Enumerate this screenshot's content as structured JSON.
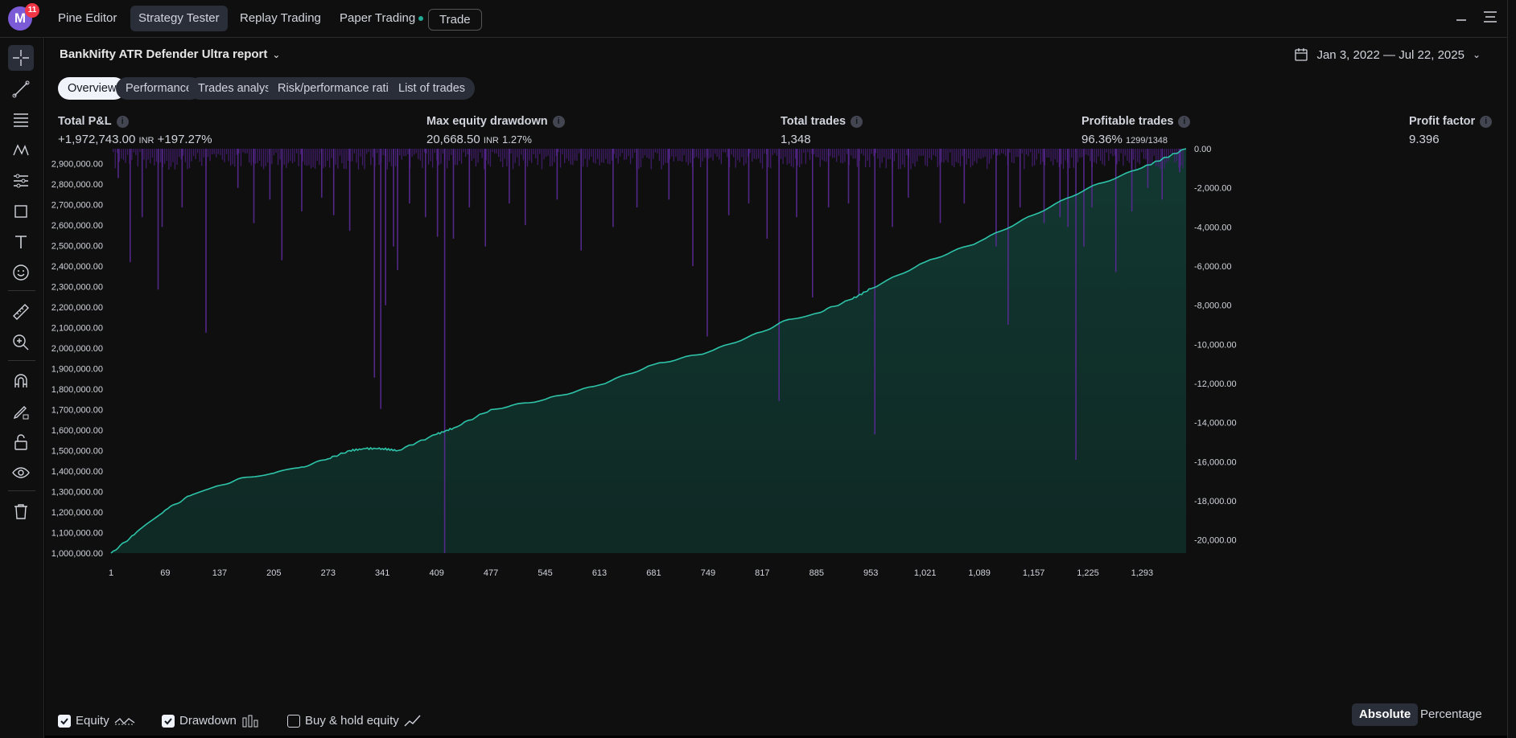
{
  "app": {
    "avatar_letter": "M",
    "notification_count": "11",
    "tabs": [
      {
        "label": "Pine Editor"
      },
      {
        "label": "Strategy Tester"
      },
      {
        "label": "Replay Trading"
      },
      {
        "label": "Paper Trading"
      }
    ],
    "trade_label": "Trade"
  },
  "report": {
    "title": "BankNifty ATR Defender Ultra report",
    "date_range": "Jan 3, 2022 — Jul 22, 2025"
  },
  "subtabs": [
    {
      "label": "Overview"
    },
    {
      "label": "Performance"
    },
    {
      "label": "Trades analysis"
    },
    {
      "label": "Risk/performance ratios"
    },
    {
      "label": "List of trades"
    }
  ],
  "stats": {
    "total_pnl": {
      "label": "Total P&L",
      "value": "+1,972,743.00",
      "unit": "INR",
      "pct": "+197.27%"
    },
    "max_drawdown": {
      "label": "Max equity drawdown",
      "value": "20,668.50",
      "unit": "INR",
      "pct": "1.27%"
    },
    "total_trades": {
      "label": "Total trades",
      "value": "1,348"
    },
    "profitable": {
      "label": "Profitable trades",
      "value": "96.36%",
      "detail": "1299/1348"
    },
    "profit_factor": {
      "label": "Profit factor",
      "value": "9.396"
    }
  },
  "legend": {
    "equity": "Equity",
    "drawdown": "Drawdown",
    "buyhold": "Buy & hold equity",
    "absolute": "Absolute",
    "percentage": "Percentage"
  },
  "colors": {
    "equity_line": "#2ec4a9",
    "equity_fill": "#123a33",
    "drawdown_bar": "#4a1f7a",
    "accent_green": "#22ab94"
  },
  "chart_data": {
    "type": "area",
    "x_ticks": [
      1,
      69,
      137,
      205,
      273,
      341,
      409,
      477,
      545,
      613,
      681,
      749,
      817,
      885,
      953,
      1021,
      1089,
      1157,
      1225,
      1293
    ],
    "x_tick_labels": [
      "1",
      "69",
      "137",
      "205",
      "273",
      "341",
      "409",
      "477",
      "545",
      "613",
      "681",
      "749",
      "817",
      "885",
      "953",
      "1,021",
      "1,089",
      "1,157",
      "1,225",
      "1,293"
    ],
    "xlim": [
      1,
      1348
    ],
    "left_axis": {
      "ylim": [
        1000000,
        2972743
      ],
      "ticks": [
        1000000,
        1100000,
        1200000,
        1300000,
        1400000,
        1500000,
        1600000,
        1700000,
        1800000,
        1900000,
        2000000,
        2100000,
        2200000,
        2300000,
        2400000,
        2500000,
        2600000,
        2700000,
        2800000,
        2900000
      ],
      "tick_labels": [
        "1,000,000.00",
        "1,100,000.00",
        "1,200,000.00",
        "1,300,000.00",
        "1,400,000.00",
        "1,500,000.00",
        "1,600,000.00",
        "1,700,000.00",
        "1,800,000.00",
        "1,900,000.00",
        "2,000,000.00",
        "2,100,000.00",
        "2,200,000.00",
        "2,300,000.00",
        "2,400,000.00",
        "2,500,000.00",
        "2,600,000.00",
        "2,700,000.00",
        "2,800,000.00",
        "2,900,000.00"
      ]
    },
    "right_axis": {
      "ylim": [
        -20668.5,
        0
      ],
      "ticks": [
        0,
        -2000,
        -4000,
        -6000,
        -8000,
        -10000,
        -12000,
        -14000,
        -16000,
        -18000,
        -20000
      ],
      "tick_labels": [
        "0.00",
        "-2,000.00",
        "-4,000.00",
        "-6,000.00",
        "-8,000.00",
        "-10,000.00",
        "-12,000.00",
        "-14,000.00",
        "-16,000.00",
        "-18,000.00",
        "-20,000.00"
      ]
    },
    "series": [
      {
        "name": "Equity",
        "x": [
          1,
          30,
          69,
          100,
          137,
          170,
          205,
          240,
          273,
          300,
          320,
          341,
          360,
          409,
          430,
          477,
          545,
          613,
          681,
          749,
          817,
          850,
          885,
          930,
          953,
          1021,
          1089,
          1157,
          1225,
          1293,
          1348
        ],
        "values": [
          1000000,
          1090000,
          1210000,
          1280000,
          1330000,
          1370000,
          1390000,
          1420000,
          1460000,
          1500000,
          1510000,
          1510000,
          1500000,
          1580000,
          1610000,
          1700000,
          1750000,
          1820000,
          1920000,
          1980000,
          2080000,
          2140000,
          2170000,
          2240000,
          2290000,
          2420000,
          2520000,
          2650000,
          2780000,
          2880000,
          2972743
        ]
      },
      {
        "name": "Drawdown",
        "x": [
          10,
          25,
          40,
          60,
          65,
          90,
          120,
          160,
          180,
          200,
          215,
          240,
          265,
          280,
          300,
          331,
          339,
          345,
          355,
          360,
          375,
          395,
          410,
          419,
          430,
          450,
          470,
          500,
          520,
          560,
          590,
          630,
          660,
          700,
          730,
          748,
          775,
          800,
          823,
          838,
          860,
          880,
          900,
          925,
          938,
          958,
          980,
          1000,
          1040,
          1070,
          1110,
          1125,
          1140,
          1170,
          1190,
          1200,
          1210,
          1220,
          1230,
          1260,
          1280,
          1300,
          1318,
          1340
        ],
        "values": [
          -1500,
          -5800,
          -3500,
          -7200,
          -4000,
          -3000,
          -9400,
          -2000,
          -3800,
          -2600,
          -5700,
          -3200,
          -2500,
          -3400,
          -4200,
          -11700,
          -13300,
          -8000,
          -5000,
          -6200,
          -2800,
          -3500,
          -4500,
          -20668.5,
          -4600,
          -3000,
          -5000,
          -2800,
          -3900,
          -2600,
          -5200,
          -4000,
          -3000,
          -2600,
          -6000,
          -9600,
          -3400,
          -2800,
          -4600,
          -12900,
          -3500,
          -7600,
          -3000,
          -2800,
          -7500,
          -14600,
          -4000,
          -2500,
          -3800,
          -2800,
          -5000,
          -9000,
          -3000,
          -3800,
          -3500,
          -4000,
          -15900,
          -5000,
          -3000,
          -6300,
          -3200,
          -2000,
          -2600,
          -1200
        ]
      }
    ]
  }
}
